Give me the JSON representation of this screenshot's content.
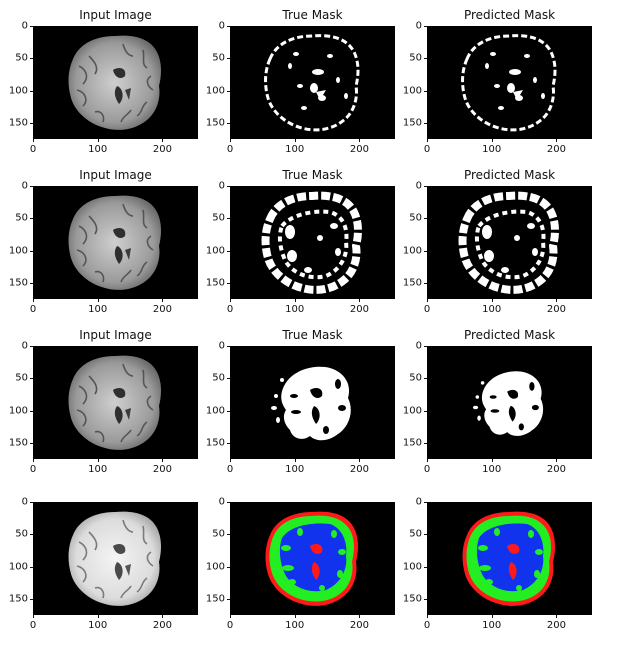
{
  "rows": [
    {
      "panels": [
        {
          "title": "Input Image",
          "kind": "mri"
        },
        {
          "title": "True Mask",
          "kind": "mask_sparse"
        },
        {
          "title": "Predicted Mask",
          "kind": "mask_sparse"
        }
      ]
    },
    {
      "panels": [
        {
          "title": "Input Image",
          "kind": "mri"
        },
        {
          "title": "True Mask",
          "kind": "mask_dense"
        },
        {
          "title": "Predicted Mask",
          "kind": "mask_dense"
        }
      ]
    },
    {
      "panels": [
        {
          "title": "Input Image",
          "kind": "mri"
        },
        {
          "title": "True Mask",
          "kind": "mask_wm"
        },
        {
          "title": "Predicted Mask",
          "kind": "mask_wm_small"
        }
      ]
    },
    {
      "panels": [
        {
          "title": "",
          "kind": "mri_bright"
        },
        {
          "title": "",
          "kind": "seg_color"
        },
        {
          "title": "",
          "kind": "seg_color"
        }
      ]
    }
  ],
  "axes": {
    "y_ticks": [
      "0",
      "50",
      "100",
      "150"
    ],
    "x_ticks": [
      "0",
      "100",
      "200"
    ],
    "x_range": [
      0,
      255
    ],
    "y_range": [
      0,
      175
    ]
  },
  "colors": {
    "background": "#000000",
    "mask_white": "#ffffff",
    "seg_red": "#ff1a1a",
    "seg_green": "#22ee22",
    "seg_blue": "#1133ee"
  }
}
